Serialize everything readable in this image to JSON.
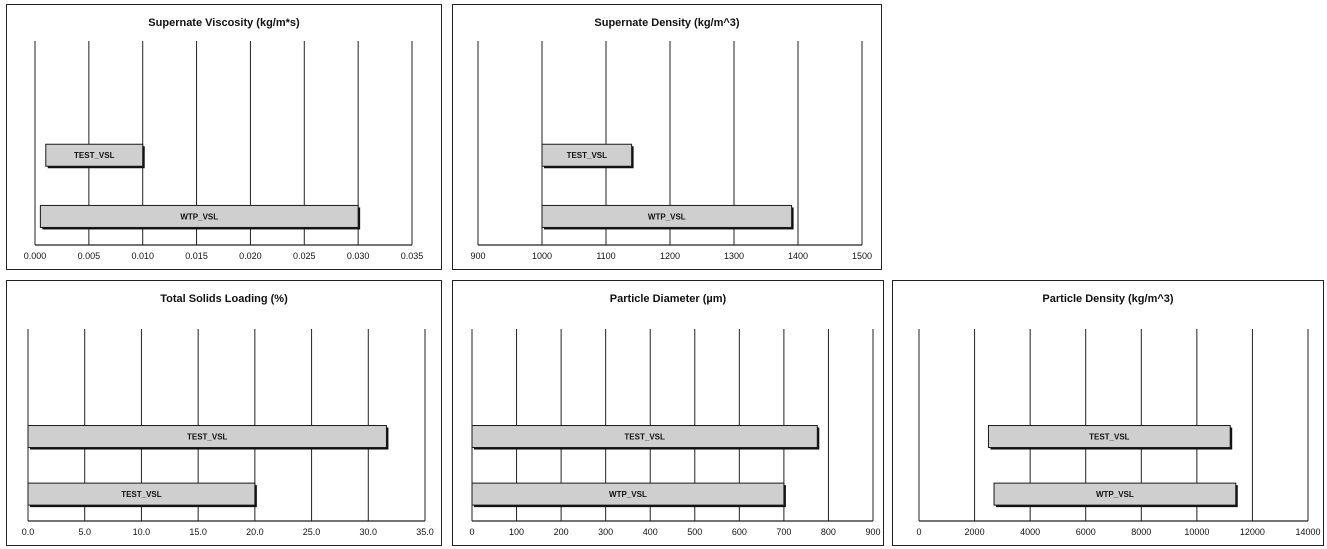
{
  "chart_data": [
    {
      "type": "bar",
      "orientation": "horizontal-range",
      "title": "Supernate Viscosity (kg/m*s)",
      "xlim": [
        0.0,
        0.035
      ],
      "xticks": [
        "0.000",
        "0.005",
        "0.010",
        "0.015",
        "0.020",
        "0.025",
        "0.030",
        "0.035"
      ],
      "bars": [
        {
          "label": "TEST_VSL",
          "start": 0.001,
          "end": 0.01
        },
        {
          "label": "WTP_VSL",
          "start": 0.0005,
          "end": 0.03
        }
      ]
    },
    {
      "type": "bar",
      "orientation": "horizontal-range",
      "title": "Supernate Density (kg/m^3)",
      "xlim": [
        900,
        1500
      ],
      "xticks": [
        "900",
        "1000",
        "1100",
        "1200",
        "1300",
        "1400",
        "1500"
      ],
      "bars": [
        {
          "label": "TEST_VSL",
          "start": 1000,
          "end": 1140
        },
        {
          "label": "WTP_VSL",
          "start": 1000,
          "end": 1390
        }
      ]
    },
    {
      "type": "bar",
      "orientation": "horizontal-range",
      "title": "Total Solids Loading (%)",
      "xlim": [
        0,
        35
      ],
      "xticks": [
        "0.0",
        "5.0",
        "10.0",
        "15.0",
        "20.0",
        "25.0",
        "30.0",
        "35.0"
      ],
      "bars": [
        {
          "label": "TEST_VSL",
          "start": 0,
          "end": 31.6
        },
        {
          "label": "TEST_VSL",
          "start": 0,
          "end": 20
        }
      ]
    },
    {
      "type": "bar",
      "orientation": "horizontal-range",
      "title": "Particle Diameter (µm)",
      "xlim": [
        0,
        900
      ],
      "xticks": [
        "0",
        "100",
        "200",
        "300",
        "400",
        "500",
        "600",
        "700",
        "800",
        "900"
      ],
      "bars": [
        {
          "label": "TEST_VSL",
          "start": 0,
          "end": 775
        },
        {
          "label": "WTP_VSL",
          "start": 0,
          "end": 700
        }
      ]
    },
    {
      "type": "bar",
      "orientation": "horizontal-range",
      "title": "Particle Density (kg/m^3)",
      "xlim": [
        0,
        14000
      ],
      "xticks": [
        "0",
        "2000",
        "4000",
        "6000",
        "8000",
        "10000",
        "12000",
        "14000"
      ],
      "bars": [
        {
          "label": "TEST_VSL",
          "start": 2500,
          "end": 11200
        },
        {
          "label": "WTP_VSL",
          "start": 2700,
          "end": 11400
        }
      ]
    }
  ],
  "colors": {
    "bar_fill": "#cfcfcf",
    "bar_edge": "#1a1a1a",
    "grid": "#222222"
  }
}
